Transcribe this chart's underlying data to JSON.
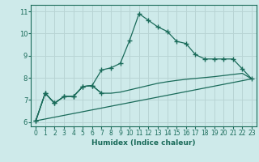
{
  "xlabel": "Humidex (Indice chaleur)",
  "bg_color": "#ceeaea",
  "grid_color": "#b8d4d4",
  "line_color": "#1a6b5a",
  "xlim": [
    -0.5,
    23.5
  ],
  "ylim": [
    5.8,
    11.3
  ],
  "xticks": [
    0,
    1,
    2,
    3,
    4,
    5,
    6,
    7,
    8,
    9,
    10,
    11,
    12,
    13,
    14,
    15,
    16,
    17,
    18,
    19,
    20,
    21,
    22,
    23
  ],
  "yticks": [
    6,
    7,
    8,
    9,
    10,
    11
  ],
  "line1_x": [
    0,
    1,
    2,
    3,
    4,
    5,
    6,
    7,
    8,
    9,
    10,
    11,
    12,
    13,
    14,
    15,
    16,
    17,
    18,
    19,
    20,
    21,
    22,
    23
  ],
  "line1_y": [
    6.05,
    7.3,
    6.85,
    7.15,
    7.15,
    7.6,
    7.65,
    8.35,
    8.45,
    8.65,
    9.7,
    10.9,
    10.6,
    10.3,
    10.1,
    9.65,
    9.55,
    9.05,
    8.85,
    8.85,
    8.85,
    8.85,
    8.4,
    7.95
  ],
  "line2_x": [
    0,
    1,
    2,
    3,
    4,
    5,
    6,
    7
  ],
  "line2_y": [
    6.05,
    7.3,
    6.85,
    7.15,
    7.15,
    7.6,
    7.65,
    7.3
  ],
  "line2_ext_x": [
    0,
    1,
    2,
    3,
    4,
    5,
    6,
    7,
    8,
    9,
    10,
    11,
    12,
    13,
    14,
    15,
    16,
    17,
    18,
    19,
    20,
    21,
    22,
    23
  ],
  "line2_ext_y": [
    6.05,
    7.3,
    6.85,
    7.15,
    7.15,
    7.6,
    7.65,
    7.3,
    7.3,
    7.35,
    7.45,
    7.55,
    7.65,
    7.75,
    7.82,
    7.88,
    7.93,
    7.97,
    8.01,
    8.05,
    8.1,
    8.15,
    8.2,
    7.95
  ],
  "line3_x": [
    0,
    23
  ],
  "line3_y": [
    6.05,
    7.95
  ],
  "font_color": "#1a6b5a"
}
